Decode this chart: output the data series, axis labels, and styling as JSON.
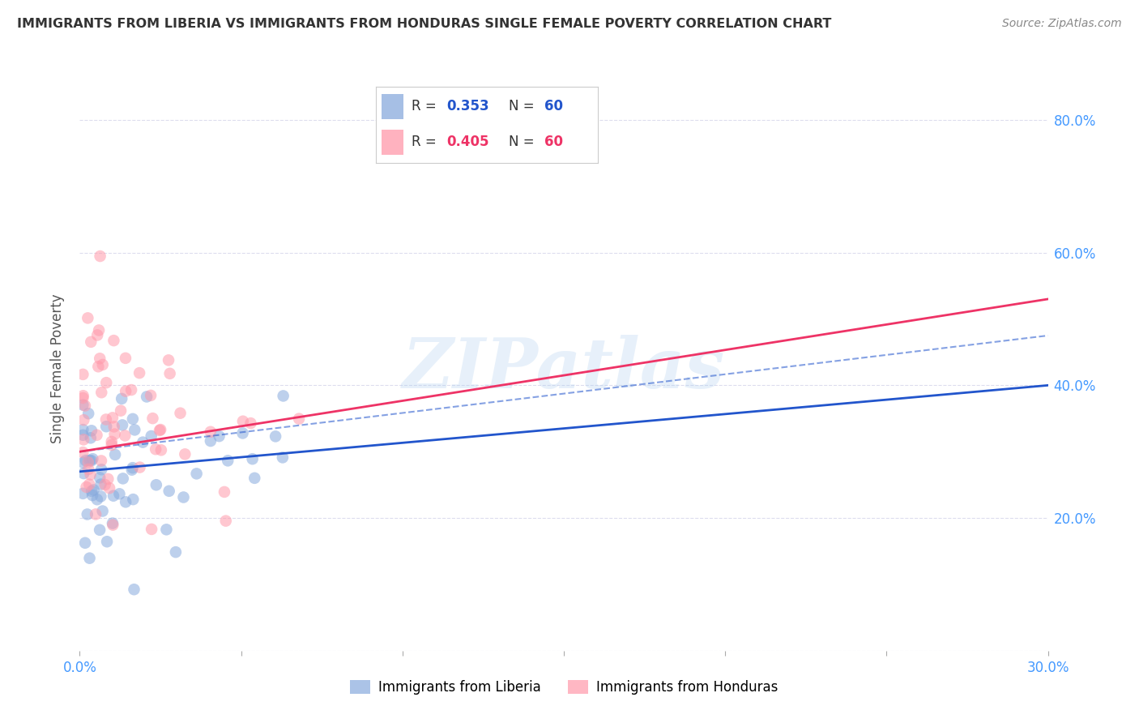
{
  "title": "IMMIGRANTS FROM LIBERIA VS IMMIGRANTS FROM HONDURAS SINGLE FEMALE POVERTY CORRELATION CHART",
  "source": "Source: ZipAtlas.com",
  "ylabel": "Single Female Poverty",
  "legend_label1": "Immigrants from Liberia",
  "legend_label2": "Immigrants from Honduras",
  "R1": 0.353,
  "N1": 60,
  "R2": 0.405,
  "N2": 60,
  "xlim": [
    0.0,
    0.3
  ],
  "ylim": [
    0.0,
    0.85
  ],
  "color_liberia": "#88AADD",
  "color_honduras": "#FF99AA",
  "trend_color_liberia": "#2255CC",
  "trend_color_honduras": "#EE3366",
  "background_color": "#FFFFFF",
  "watermark_text": "ZIPatlas",
  "axis_label_color": "#4499FF",
  "title_color": "#333333",
  "title_fontsize": 11.5,
  "blue_line_y0": 0.27,
  "blue_line_y1": 0.4,
  "pink_line_y0": 0.3,
  "pink_line_y1": 0.53,
  "dash_line_x0": 0.0,
  "dash_line_y0": 0.3,
  "dash_line_x1": 0.3,
  "dash_line_y1": 0.475
}
